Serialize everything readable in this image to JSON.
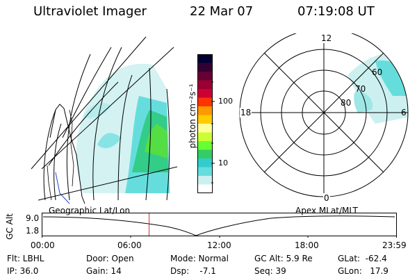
{
  "header": {
    "title": "Ultraviolet Imager",
    "date": "22 Mar 07",
    "time": "07:19:08 UT"
  },
  "colorbar": {
    "unit_label": "photon cm⁻²s⁻¹",
    "ticks": [
      "100",
      "10"
    ],
    "colors": [
      "#000033",
      "#330033",
      "#660033",
      "#990033",
      "#cc0033",
      "#ff3300",
      "#ff9900",
      "#ffcc00",
      "#ffff99",
      "#ccff33",
      "#66ff33",
      "#33cc66",
      "#33cccc",
      "#66dddd",
      "#ccf0f0",
      "#ffffff"
    ]
  },
  "geo_map": {
    "label": "Geographic Lat/Lon"
  },
  "polar_map": {
    "label": "Apex MLat/MLT",
    "mlt_labels": [
      "12",
      "18",
      "6",
      "0"
    ],
    "lat_labels": [
      "60",
      "70",
      "80"
    ]
  },
  "altitude_plot": {
    "ylabel": "GC Alt",
    "yticks": [
      "9.0",
      "1.8"
    ],
    "xticks": [
      "00:00",
      "06:00",
      "12:00",
      "18:00",
      "23:59"
    ],
    "marker_time": "07:19"
  },
  "info": {
    "filter": "Flt: LBHL",
    "ip": "IP: 36.0",
    "door": "Door: Open",
    "gain": "Gain: 14",
    "mode": "Mode: Normal",
    "dsp": "Dsp:    -7.1",
    "gc_alt": "GC Alt: 5.9 Re",
    "seq": "Seq: 39",
    "glat": "GLat:  -62.4",
    "glon": "GLon:   17.9"
  }
}
